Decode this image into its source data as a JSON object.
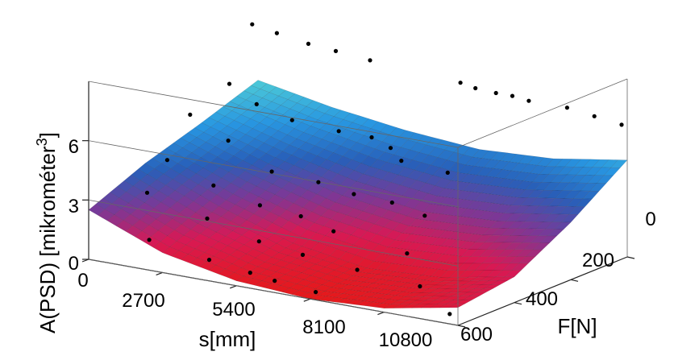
{
  "chart_data": {
    "type": "surface3d",
    "xlabel": "s[mm]",
    "ylabel": "F[N]",
    "zlabel": "A(PSD) [mikrométer",
    "zlabel_sup": "3",
    "zlabel_end": "]",
    "x_ticks": [
      "0",
      "2700",
      "5400",
      "8100",
      "10800"
    ],
    "y_ticks": [
      "0",
      "200",
      "400",
      "600"
    ],
    "z_ticks": [
      "0",
      "3",
      "6"
    ],
    "x_range": [
      0,
      13500
    ],
    "y_range": [
      0,
      600
    ],
    "z_range": [
      0,
      9
    ],
    "colormap": "hsv",
    "grid": false,
    "surface_z": [
      [
        5.6,
        4.9,
        4.4,
        4.1,
        4.3,
        4.9
      ],
      [
        4.6,
        3.5,
        2.6,
        2.1,
        2.3,
        2.9
      ],
      [
        3.7,
        2.2,
        1.0,
        0.4,
        0.6,
        1.3
      ],
      [
        2.5,
        1.0,
        0.25,
        0.0,
        0.2,
        0.9
      ]
    ],
    "surface_top": [
      9.4,
      8.4,
      7.8,
      7.4,
      7.1,
      6.8
    ],
    "points": [
      {
        "x": 200,
        "y": 40,
        "z": 8.7
      },
      {
        "x": 1000,
        "y": 30,
        "z": 8.4
      },
      {
        "x": 2100,
        "y": 25,
        "z": 8.1
      },
      {
        "x": 3000,
        "y": 15,
        "z": 7.9
      },
      {
        "x": 4200,
        "y": 10,
        "z": 7.7
      },
      {
        "x": 7400,
        "y": 0,
        "z": 7.3
      },
      {
        "x": 8000,
        "y": 5,
        "z": 7.2
      },
      {
        "x": 8700,
        "y": 0,
        "z": 7.1
      },
      {
        "x": 9300,
        "y": 0,
        "z": 7.1
      },
      {
        "x": 9900,
        "y": 0,
        "z": 7.0
      },
      {
        "x": 11300,
        "y": 0,
        "z": 7.0
      },
      {
        "x": 12400,
        "y": 10,
        "z": 6.9
      },
      {
        "x": 13500,
        "y": 20,
        "z": 6.8
      },
      {
        "x": 500,
        "y": 150,
        "z": 6.4
      },
      {
        "x": 1600,
        "y": 160,
        "z": 5.7
      },
      {
        "x": 3000,
        "y": 170,
        "z": 5.3
      },
      {
        "x": 4500,
        "y": 150,
        "z": 5.0
      },
      {
        "x": 5600,
        "y": 140,
        "z": 4.9
      },
      {
        "x": 6500,
        "y": 160,
        "z": 4.7
      },
      {
        "x": 7200,
        "y": 190,
        "z": 4.4
      },
      {
        "x": 9000,
        "y": 200,
        "z": 4.3
      },
      {
        "x": 200,
        "y": 260,
        "z": 5.4
      },
      {
        "x": 1800,
        "y": 280,
        "z": 4.6
      },
      {
        "x": 3600,
        "y": 300,
        "z": 3.6
      },
      {
        "x": 5200,
        "y": 290,
        "z": 3.4
      },
      {
        "x": 6600,
        "y": 300,
        "z": 3.2
      },
      {
        "x": 8100,
        "y": 310,
        "z": 3.2
      },
      {
        "x": 9500,
        "y": 330,
        "z": 3.0
      },
      {
        "x": 600,
        "y": 380,
        "z": 3.9
      },
      {
        "x": 2500,
        "y": 400,
        "z": 3.2
      },
      {
        "x": 4300,
        "y": 410,
        "z": 2.7
      },
      {
        "x": 5900,
        "y": 420,
        "z": 2.6
      },
      {
        "x": 7300,
        "y": 440,
        "z": 2.3
      },
      {
        "x": 10300,
        "y": 470,
        "z": 2.1
      },
      {
        "x": 900,
        "y": 480,
        "z": 2.9
      },
      {
        "x": 3300,
        "y": 500,
        "z": 2.3
      },
      {
        "x": 5300,
        "y": 510,
        "z": 1.7
      },
      {
        "x": 7000,
        "y": 520,
        "z": 1.5
      },
      {
        "x": 9200,
        "y": 540,
        "z": 1.4
      },
      {
        "x": 11700,
        "y": 560,
        "z": 1.3
      },
      {
        "x": 1800,
        "y": 560,
        "z": 1.2
      },
      {
        "x": 4200,
        "y": 580,
        "z": 0.9
      },
      {
        "x": 5800,
        "y": 590,
        "z": 0.7
      },
      {
        "x": 6800,
        "y": 600,
        "z": 0.6
      },
      {
        "x": 8300,
        "y": 600,
        "z": 0.4
      },
      {
        "x": 13200,
        "y": 600,
        "z": 0.5
      }
    ]
  }
}
